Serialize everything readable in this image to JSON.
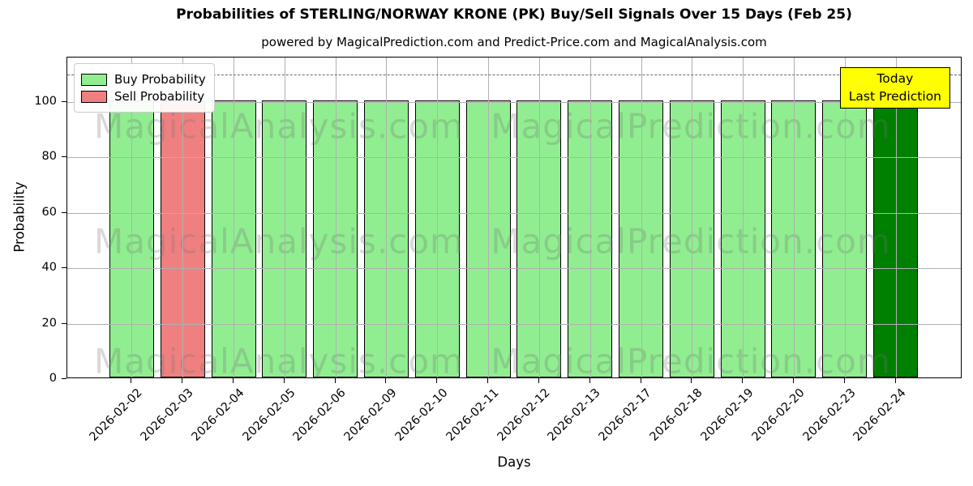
{
  "chart_data": {
    "type": "bar",
    "title": "Probabilities of STERLING/NORWAY KRONE (PK) Buy/Sell Signals Over 15 Days (Feb 25)",
    "subtitle": "powered by MagicalPrediction.com and Predict-Price.com and MagicalAnalysis.com",
    "xlabel": "Days",
    "ylabel": "Probability",
    "ylim": [
      0,
      116
    ],
    "yticks": [
      0,
      20,
      40,
      60,
      80,
      100
    ],
    "dashed_line_y": 110,
    "grid": true,
    "legend_position": "upper left",
    "colors": {
      "buy": "#90EE90",
      "sell": "#F08080",
      "today": "#008000",
      "bar_edge": "#000000",
      "annotation_bg": "#FFFF00"
    },
    "legend": {
      "entries": [
        {
          "label": "Buy Probability",
          "color": "#90EE90"
        },
        {
          "label": "Sell Probability",
          "color": "#F08080"
        }
      ]
    },
    "today_annotation": {
      "line1": "Today",
      "line2": "Last Prediction"
    },
    "watermark_texts": [
      "MagicalAnalysis.com",
      "MagicalPrediction.com"
    ],
    "bars": [
      {
        "category": "2026-02-02",
        "value": 100,
        "role": "buy"
      },
      {
        "category": "2026-02-03",
        "value": 100,
        "role": "sell"
      },
      {
        "category": "2026-02-04",
        "value": 100,
        "role": "buy"
      },
      {
        "category": "2026-02-05",
        "value": 100,
        "role": "buy"
      },
      {
        "category": "2026-02-06",
        "value": 100,
        "role": "buy"
      },
      {
        "category": "2026-02-09",
        "value": 100,
        "role": "buy"
      },
      {
        "category": "2026-02-10",
        "value": 100,
        "role": "buy"
      },
      {
        "category": "2026-02-11",
        "value": 100,
        "role": "buy"
      },
      {
        "category": "2026-02-12",
        "value": 100,
        "role": "buy"
      },
      {
        "category": "2026-02-13",
        "value": 100,
        "role": "buy"
      },
      {
        "category": "2026-02-17",
        "value": 100,
        "role": "buy"
      },
      {
        "category": "2026-02-18",
        "value": 100,
        "role": "buy"
      },
      {
        "category": "2026-02-19",
        "value": 100,
        "role": "buy"
      },
      {
        "category": "2026-02-20",
        "value": 100,
        "role": "buy"
      },
      {
        "category": "2026-02-23",
        "value": 100,
        "role": "buy"
      },
      {
        "category": "2026-02-24",
        "value": 100,
        "role": "today"
      }
    ]
  }
}
